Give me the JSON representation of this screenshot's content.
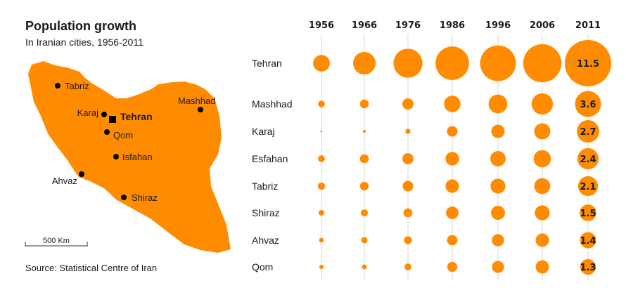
{
  "header": {
    "title": "Population growth",
    "subtitle": "In Iranian cities, 1956-2011",
    "source": "Source: Statistical Centre of Iran"
  },
  "map": {
    "fill_color": "#ff8c00",
    "scale_label": "500 Km",
    "cities": [
      {
        "name": "Tabriz",
        "capital": false
      },
      {
        "name": "Karaj",
        "capital": false
      },
      {
        "name": "Tehran",
        "capital": true
      },
      {
        "name": "Qom",
        "capital": false
      },
      {
        "name": "Mashhad",
        "capital": false
      },
      {
        "name": "Isfahan",
        "capital": false
      },
      {
        "name": "Ahvaz",
        "capital": false
      },
      {
        "name": "Shiraz",
        "capital": false
      }
    ]
  },
  "chart_data": {
    "type": "bubble-grid",
    "title": "Population growth",
    "subtitle": "In Iranian cities, 1956-2011",
    "unit": "millions",
    "bubble_color": "#ff8c00",
    "years": [
      "1956",
      "1966",
      "1976",
      "1986",
      "1996",
      "2006",
      "2011"
    ],
    "labeled_year": "2011",
    "series": [
      {
        "name": "Tehran",
        "values": [
          1.5,
          2.7,
          4.5,
          6.0,
          6.8,
          7.8,
          11.5
        ]
      },
      {
        "name": "Mashhad",
        "values": [
          0.24,
          0.41,
          0.67,
          1.46,
          1.89,
          2.43,
          3.6
        ]
      },
      {
        "name": "Karaj",
        "values": [
          0.02,
          0.04,
          0.14,
          0.6,
          0.95,
          1.39,
          2.7
        ]
      },
      {
        "name": "Esfahan",
        "values": [
          0.25,
          0.42,
          0.66,
          0.99,
          1.27,
          1.6,
          2.4
        ]
      },
      {
        "name": "Tabriz",
        "values": [
          0.29,
          0.4,
          0.6,
          0.97,
          1.19,
          1.38,
          2.1
        ]
      },
      {
        "name": "Shiraz",
        "values": [
          0.17,
          0.27,
          0.43,
          0.85,
          1.05,
          1.2,
          1.5
        ]
      },
      {
        "name": "Ahvaz",
        "values": [
          0.12,
          0.21,
          0.33,
          0.58,
          0.8,
          0.97,
          1.4
        ]
      },
      {
        "name": "Qom",
        "values": [
          0.1,
          0.13,
          0.25,
          0.54,
          0.78,
          0.95,
          1.3
        ]
      }
    ],
    "value_labels_2011": [
      "11.5",
      "3.6",
      "2.7",
      "2.4",
      "2.1",
      "1.5",
      "1.4",
      "1.3"
    ],
    "grid": "vertical lines per year"
  }
}
